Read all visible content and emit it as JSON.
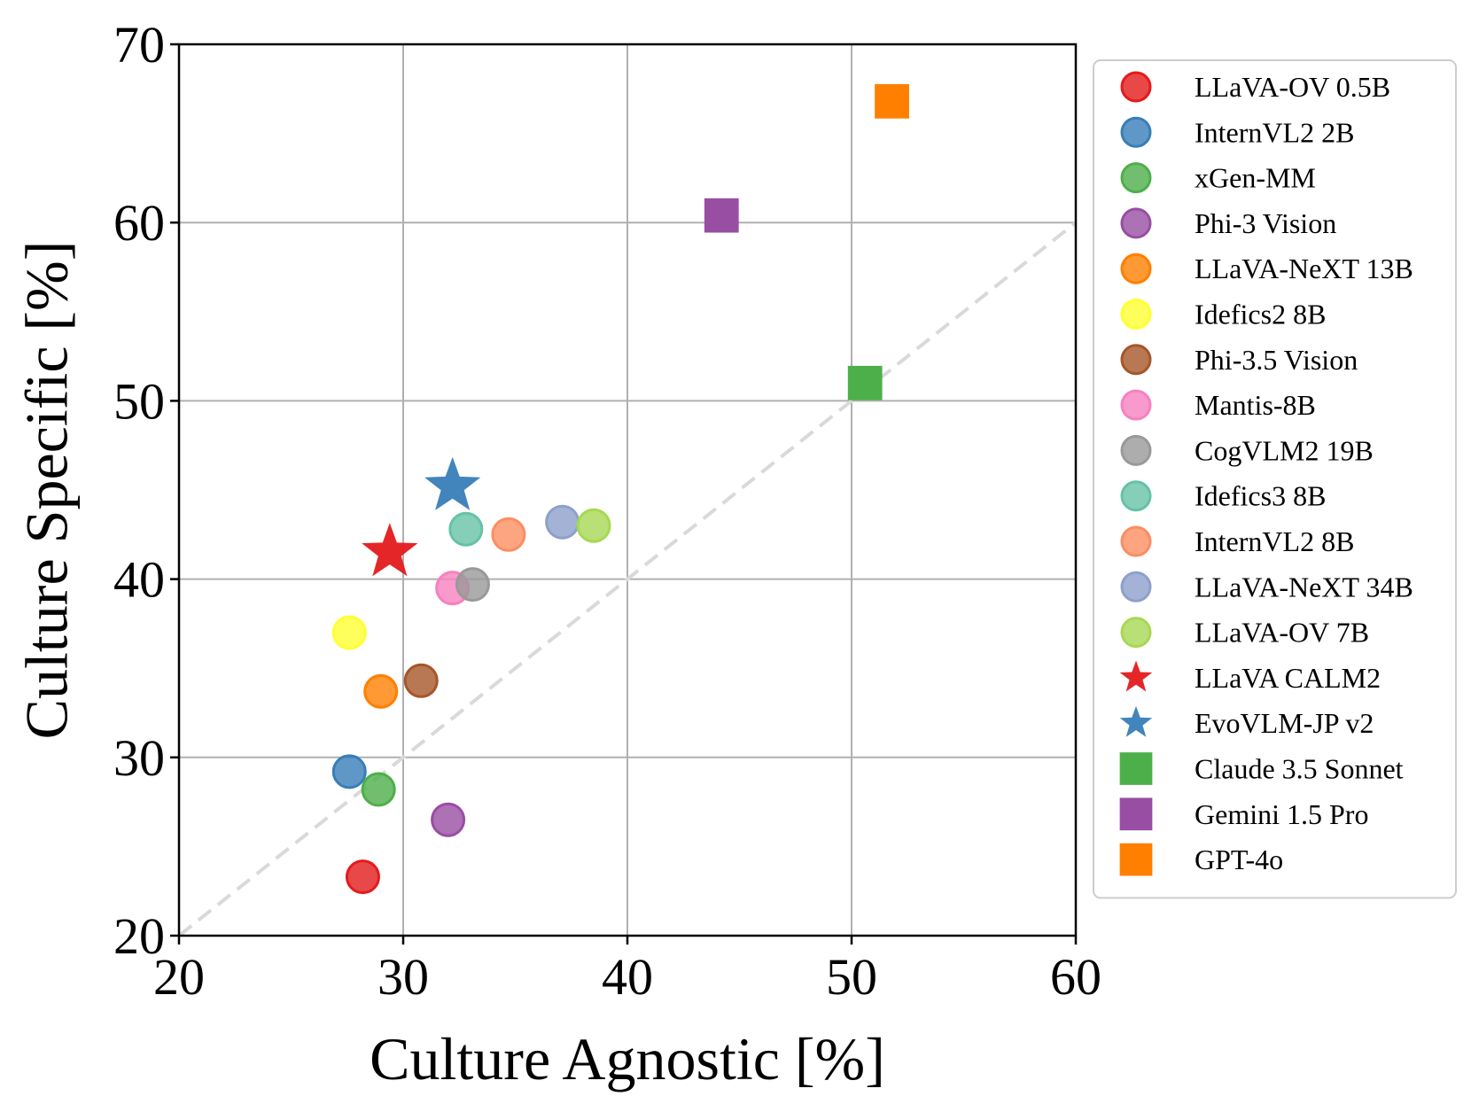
{
  "chart_data": {
    "type": "scatter",
    "title": "",
    "xlabel": "Culture Agnostic [%]",
    "ylabel": "Culture Specific [%]",
    "xlim": [
      20,
      60
    ],
    "ylim": [
      20,
      70
    ],
    "xticks": [
      "20",
      "30",
      "40",
      "50",
      "60"
    ],
    "yticks": [
      "20",
      "30",
      "40",
      "50",
      "60",
      "70"
    ],
    "grid": true,
    "reference_line": "y = x",
    "legend_position": "outside-right",
    "series": [
      {
        "name": "LLaVA-OV 0.5B",
        "marker": "circle",
        "color": "#e41a1c",
        "x": 28.2,
        "y": 23.3
      },
      {
        "name": "InternVL2 2B",
        "marker": "circle",
        "color": "#377eb8",
        "x": 27.6,
        "y": 29.2
      },
      {
        "name": "xGen-MM",
        "marker": "circle",
        "color": "#4daf4a",
        "x": 28.9,
        "y": 28.2
      },
      {
        "name": "Phi-3 Vision",
        "marker": "circle",
        "color": "#984ea3",
        "x": 32.0,
        "y": 26.5
      },
      {
        "name": "LLaVA-NeXT 13B",
        "marker": "circle",
        "color": "#ff7f00",
        "x": 29.0,
        "y": 33.7
      },
      {
        "name": "Idefics2 8B",
        "marker": "circle",
        "color": "#ffff33",
        "x": 27.6,
        "y": 37.0
      },
      {
        "name": "Phi-3.5 Vision",
        "marker": "circle",
        "color": "#a65628",
        "x": 30.8,
        "y": 34.3
      },
      {
        "name": "Mantis-8B",
        "marker": "circle",
        "color": "#f781bf",
        "x": 32.2,
        "y": 39.5
      },
      {
        "name": "CogVLM2 19B",
        "marker": "circle",
        "color": "#999999",
        "x": 33.1,
        "y": 39.7
      },
      {
        "name": "Idefics3 8B",
        "marker": "circle",
        "color": "#66c2a5",
        "x": 32.8,
        "y": 42.8
      },
      {
        "name": "InternVL2 8B",
        "marker": "circle",
        "color": "#fc8d62",
        "x": 34.7,
        "y": 42.5
      },
      {
        "name": "LLaVA-NeXT 34B",
        "marker": "circle",
        "color": "#8da0cb",
        "x": 37.1,
        "y": 43.2
      },
      {
        "name": "LLaVA-OV 7B",
        "marker": "circle",
        "color": "#a6d854",
        "x": 38.5,
        "y": 43.0
      },
      {
        "name": "LLaVA CALM2",
        "marker": "star",
        "color": "#e41a1c",
        "x": 29.4,
        "y": 41.5
      },
      {
        "name": "EvoVLM-JP v2",
        "marker": "star",
        "color": "#377eb8",
        "x": 32.2,
        "y": 45.2
      },
      {
        "name": "Claude 3.5 Sonnet",
        "marker": "square",
        "color": "#4daf4a",
        "x": 50.6,
        "y": 51.0
      },
      {
        "name": "Gemini 1.5 Pro",
        "marker": "square",
        "color": "#984ea3",
        "x": 44.2,
        "y": 60.4
      },
      {
        "name": "GPT-4o",
        "marker": "square",
        "color": "#ff7f00",
        "x": 51.8,
        "y": 66.8
      }
    ]
  }
}
